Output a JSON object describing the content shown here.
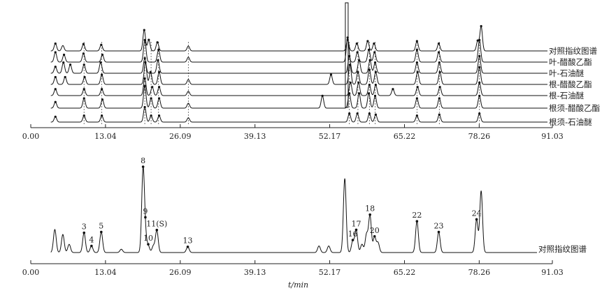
{
  "chart_data": [
    {
      "type": "line",
      "title": "",
      "xlabel": "",
      "ylabel": "",
      "xlim": [
        0,
        91.03
      ],
      "x_ticks": [
        "0.00",
        "13.04",
        "26.09",
        "39.13",
        "52.17",
        "65.22",
        "78.26",
        "91.03"
      ],
      "series": [
        {
          "name": "对照指纹图谱",
          "peaks": [
            [
              4.3,
              0.3
            ],
            [
              5.6,
              0.22
            ],
            [
              9.2,
              0.28
            ],
            [
              12.3,
              0.25
            ],
            [
              19.8,
              0.85
            ],
            [
              20.6,
              0.45
            ],
            [
              22.1,
              0.35
            ],
            [
              27.5,
              0.2
            ],
            [
              55.3,
              0.45
            ],
            [
              56.9,
              0.3
            ],
            [
              58.8,
              0.4
            ],
            [
              59.9,
              0.3
            ],
            [
              67.4,
              0.4
            ],
            [
              71.2,
              0.3
            ],
            [
              78.0,
              0.4
            ],
            [
              78.6,
              1.0
            ]
          ]
        },
        {
          "name": "叶-醋酸乙酯",
          "peaks": [
            [
              4.3,
              0.4
            ],
            [
              5.8,
              0.3
            ],
            [
              9.2,
              0.35
            ],
            [
              12.5,
              0.3
            ],
            [
              19.9,
              0.9
            ],
            [
              22.3,
              0.5
            ],
            [
              27.5,
              0.2
            ],
            [
              55.3,
              1.0
            ],
            [
              57.0,
              0.4
            ],
            [
              59.0,
              0.5
            ],
            [
              60.0,
              0.4
            ],
            [
              67.4,
              0.5
            ],
            [
              71.2,
              0.4
            ],
            [
              78.3,
              0.9
            ]
          ]
        },
        {
          "name": "叶-石油醚",
          "peaks": [
            [
              4.3,
              0.3
            ],
            [
              5.7,
              0.5
            ],
            [
              6.9,
              0.4
            ],
            [
              9.3,
              0.4
            ],
            [
              12.2,
              0.5
            ],
            [
              19.9,
              0.7
            ],
            [
              22.2,
              0.6
            ],
            [
              55.6,
              0.8
            ],
            [
              57.3,
              0.6
            ],
            [
              59.2,
              0.6
            ],
            [
              60.1,
              0.5
            ],
            [
              67.4,
              0.5
            ],
            [
              71.3,
              0.5
            ],
            [
              78.3,
              0.8
            ]
          ]
        },
        {
          "name": "根-醋酸乙酯",
          "peaks": [
            [
              4.3,
              0.3
            ],
            [
              6.0,
              0.3
            ],
            [
              9.4,
              0.3
            ],
            [
              12.4,
              0.4
            ],
            [
              20.0,
              0.9
            ],
            [
              20.9,
              0.5
            ],
            [
              22.4,
              0.5
            ],
            [
              27.5,
              0.2
            ],
            [
              52.4,
              0.4
            ],
            [
              55.7,
              0.8
            ],
            [
              57.1,
              0.5
            ],
            [
              59.1,
              0.6
            ],
            [
              60.2,
              0.5
            ],
            [
              67.5,
              0.5
            ],
            [
              71.4,
              0.5
            ],
            [
              78.3,
              0.7
            ]
          ]
        },
        {
          "name": "根-石油醚",
          "peaks": [
            [
              4.3,
              0.3
            ],
            [
              9.3,
              0.3
            ],
            [
              12.4,
              0.3
            ],
            [
              19.9,
              0.8
            ],
            [
              21.2,
              0.4
            ],
            [
              22.4,
              0.4
            ],
            [
              27.5,
              0.2
            ],
            [
              55.8,
              0.6
            ],
            [
              57.2,
              0.6
            ],
            [
              59.1,
              0.5
            ],
            [
              60.2,
              0.5
            ],
            [
              63.2,
              0.3
            ],
            [
              67.5,
              0.4
            ],
            [
              71.4,
              0.4
            ],
            [
              78.3,
              0.6
            ]
          ]
        },
        {
          "name": "根须-醋酸乙酯",
          "peaks": [
            [
              4.3,
              0.25
            ],
            [
              9.3,
              0.4
            ],
            [
              12.5,
              0.35
            ],
            [
              19.9,
              0.9
            ],
            [
              21.0,
              0.4
            ],
            [
              22.4,
              0.4
            ],
            [
              27.5,
              0.2
            ],
            [
              50.9,
              0.5
            ],
            [
              55.6,
              0.6
            ],
            [
              57.3,
              0.6
            ],
            [
              59.0,
              0.6
            ],
            [
              60.1,
              0.5
            ],
            [
              67.4,
              0.4
            ],
            [
              71.3,
              0.4
            ],
            [
              78.3,
              0.5
            ]
          ]
        },
        {
          "name": "根须-石油醚",
          "peaks": [
            [
              4.3,
              0.25
            ],
            [
              9.3,
              0.3
            ],
            [
              12.4,
              0.3
            ],
            [
              19.9,
              0.7
            ],
            [
              21.0,
              0.3
            ],
            [
              22.4,
              0.3
            ],
            [
              27.5,
              0.2
            ],
            [
              55.6,
              0.4
            ],
            [
              57.0,
              0.4
            ],
            [
              59.1,
              0.4
            ],
            [
              60.2,
              0.35
            ],
            [
              67.4,
              0.3
            ],
            [
              71.3,
              0.35
            ],
            [
              78.3,
              0.4
            ]
          ]
        }
      ]
    },
    {
      "type": "line",
      "title": "",
      "xlabel": "t/min",
      "ylabel": "",
      "xlim": [
        0,
        91.03
      ],
      "x_ticks": [
        "0.00",
        "13.04",
        "26.09",
        "39.13",
        "52.17",
        "65.22",
        "78.26",
        "91.03"
      ],
      "series": [
        {
          "name": "对照指纹图谱",
          "peaks": [
            [
              4.2,
              0.28
            ],
            [
              5.6,
              0.22
            ],
            [
              6.7,
              0.1
            ],
            [
              9.3,
              0.24
            ],
            [
              10.6,
              0.08
            ],
            [
              12.3,
              0.25
            ],
            [
              15.8,
              0.04
            ],
            [
              19.6,
              1.0
            ],
            [
              20.0,
              0.17
            ],
            [
              20.5,
              0.08
            ],
            [
              21.4,
              0.08
            ],
            [
              22.0,
              0.27
            ],
            [
              27.4,
              0.07
            ],
            [
              50.3,
              0.08
            ],
            [
              52.0,
              0.08
            ],
            [
              54.8,
              0.9
            ],
            [
              56.2,
              0.14
            ],
            [
              56.8,
              0.27
            ],
            [
              57.8,
              0.1
            ],
            [
              58.6,
              0.22
            ],
            [
              59.2,
              0.45
            ],
            [
              60.0,
              0.19
            ],
            [
              60.6,
              0.12
            ],
            [
              67.4,
              0.38
            ],
            [
              71.2,
              0.25
            ],
            [
              77.8,
              0.4
            ],
            [
              78.6,
              0.75
            ]
          ]
        }
      ],
      "peak_labels": [
        {
          "label": "3",
          "x": 9.3,
          "y": 0.24
        },
        {
          "label": "4",
          "x": 10.6,
          "y": 0.08
        },
        {
          "label": "5",
          "x": 12.3,
          "y": 0.25
        },
        {
          "label": "8",
          "x": 19.6,
          "y": 1.0
        },
        {
          "label": "9",
          "x": 20.0,
          "y": 0.17
        },
        {
          "label": "10",
          "x": 20.5,
          "y": 0.08
        },
        {
          "label": "11(S)",
          "x": 22.0,
          "y": 0.27
        },
        {
          "label": "13",
          "x": 27.4,
          "y": 0.07
        },
        {
          "label": "16",
          "x": 56.2,
          "y": 0.14
        },
        {
          "label": "17",
          "x": 56.8,
          "y": 0.27
        },
        {
          "label": "18",
          "x": 59.2,
          "y": 0.45
        },
        {
          "label": "20",
          "x": 60.0,
          "y": 0.19
        },
        {
          "label": "22",
          "x": 67.4,
          "y": 0.38
        },
        {
          "label": "23",
          "x": 71.2,
          "y": 0.25
        },
        {
          "label": "24",
          "x": 77.8,
          "y": 0.4
        }
      ]
    }
  ]
}
